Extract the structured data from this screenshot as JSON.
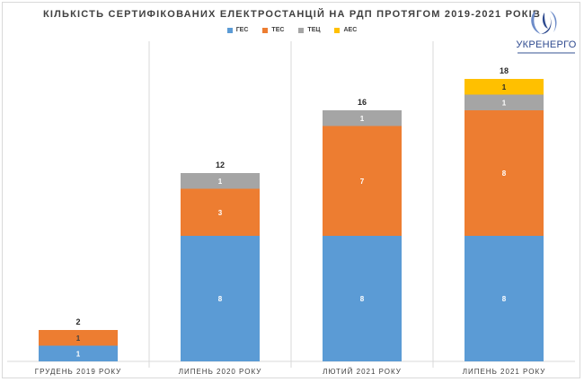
{
  "chart_data": {
    "type": "bar",
    "stacked": true,
    "title": "КІЛЬКІСТЬ СЕРТИФІКОВАНИХ ЕЛЕКТРОСТАНЦІЙ НА РДП ПРОТЯГОМ 2019-2021 РОКІВ",
    "categories": [
      "ГРУДЕНЬ 2019 РОКУ",
      "ЛИПЕНЬ 2020 РОКУ",
      "ЛЮТИЙ 2021 РОКУ",
      "ЛИПЕНЬ 2021 РОКУ"
    ],
    "series": [
      {
        "name": "ГЕС",
        "color": "#5B9BD5",
        "values": [
          1,
          8,
          8,
          8
        ]
      },
      {
        "name": "ТЕС",
        "color": "#ED7D31",
        "values": [
          1,
          3,
          7,
          8
        ]
      },
      {
        "name": "ТЕЦ",
        "color": "#A5A5A5",
        "values": [
          0,
          1,
          1,
          1
        ]
      },
      {
        "name": "АЕС",
        "color": "#FFC000",
        "values": [
          0,
          0,
          0,
          1
        ]
      }
    ],
    "totals": [
      2,
      12,
      16,
      18
    ],
    "legend_position": "top",
    "grid": false,
    "ylim": [
      0,
      18
    ]
  },
  "logo": {
    "name": "УКРЕНЕРГО",
    "colors": {
      "primary": "#2e4a8f",
      "accent": "#6d8cc9"
    }
  }
}
